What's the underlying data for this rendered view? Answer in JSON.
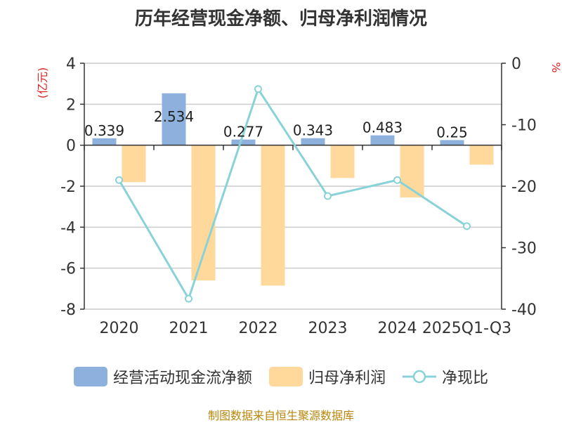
{
  "chart_data": {
    "type": "bar+line",
    "title": "历年经营现金净额、归母净利润情况",
    "categories": [
      "2020",
      "2021",
      "2022",
      "2023",
      "2024",
      "2025Q1-Q3"
    ],
    "series": [
      {
        "name": "经营活动现金流净额",
        "axis": "left",
        "kind": "bar",
        "color": "#8eb0dc",
        "values": [
          0.339,
          2.534,
          0.277,
          0.343,
          0.483,
          0.25
        ],
        "labels": [
          "0.339",
          "2.534",
          "0.277",
          "0.343",
          "0.483",
          "0.25"
        ]
      },
      {
        "name": "归母净利润",
        "axis": "left",
        "kind": "bar",
        "color": "#fed99b",
        "values": [
          -1.8,
          -6.6,
          -6.85,
          -1.6,
          -2.55,
          -0.95
        ]
      },
      {
        "name": "净现比",
        "axis": "right",
        "kind": "line",
        "color": "#89d2d8",
        "values": [
          -19,
          -38.3,
          -4.2,
          -21.6,
          -19,
          -26.5
        ]
      }
    ],
    "left_axis": {
      "unit": "(亿元)",
      "min": -8,
      "max": 4,
      "ticks": [
        "4",
        "2",
        "0",
        "-2",
        "-4",
        "-6",
        "-8"
      ]
    },
    "right_axis": {
      "unit": "%",
      "min": -40,
      "max": 0,
      "ticks": [
        "0",
        "-10",
        "-20",
        "-30",
        "-40"
      ]
    }
  },
  "footer": {
    "source": "制图数据来自恒生聚源数据库"
  }
}
